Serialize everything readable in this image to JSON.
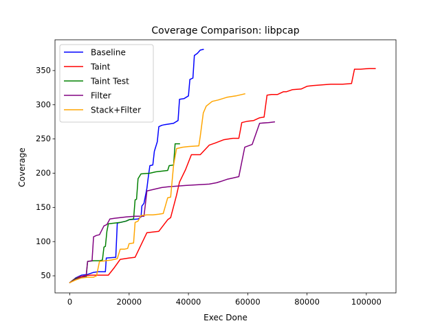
{
  "chart_data": {
    "type": "line",
    "title": "Coverage Comparison: libpcap",
    "xlabel": "Exec Done",
    "ylabel": "Coverage",
    "xlim": [
      -5000,
      110000
    ],
    "ylim": [
      25,
      395
    ],
    "xticks": [
      0,
      20000,
      40000,
      60000,
      80000,
      100000
    ],
    "yticks": [
      50,
      100,
      150,
      200,
      250,
      300,
      350
    ],
    "grid": false,
    "legend_position": "top-left",
    "series": [
      {
        "name": "Baseline",
        "color": "#0000ff",
        "points": [
          [
            0,
            40
          ],
          [
            2000,
            47
          ],
          [
            4000,
            51
          ],
          [
            6000,
            52
          ],
          [
            8000,
            55
          ],
          [
            9500,
            56
          ],
          [
            12000,
            56
          ],
          [
            12300,
            76
          ],
          [
            15500,
            77
          ],
          [
            16000,
            127
          ],
          [
            19000,
            130
          ],
          [
            20000,
            132
          ],
          [
            23000,
            133
          ],
          [
            24000,
            136
          ],
          [
            24300,
            152
          ],
          [
            25000,
            156
          ],
          [
            26000,
            178
          ],
          [
            26500,
            196
          ],
          [
            27000,
            211
          ],
          [
            28000,
            212
          ],
          [
            28500,
            232
          ],
          [
            29500,
            246
          ],
          [
            30000,
            268
          ],
          [
            31000,
            270
          ],
          [
            32000,
            271
          ],
          [
            35000,
            273
          ],
          [
            36500,
            277
          ],
          [
            37000,
            308
          ],
          [
            38500,
            309
          ],
          [
            40000,
            313
          ],
          [
            40500,
            337
          ],
          [
            41500,
            339
          ],
          [
            42000,
            372
          ],
          [
            43000,
            375
          ],
          [
            44000,
            380
          ],
          [
            45000,
            381
          ]
        ]
      },
      {
        "name": "Taint",
        "color": "#ff0000",
        "points": [
          [
            0,
            40
          ],
          [
            1500,
            45
          ],
          [
            3000,
            48
          ],
          [
            5000,
            50
          ],
          [
            7000,
            51
          ],
          [
            10000,
            51
          ],
          [
            13000,
            51
          ],
          [
            15000,
            62
          ],
          [
            17000,
            74
          ],
          [
            20000,
            76
          ],
          [
            22000,
            77
          ],
          [
            26000,
            113
          ],
          [
            28000,
            114
          ],
          [
            30000,
            115
          ],
          [
            33000,
            132
          ],
          [
            34000,
            135
          ],
          [
            36000,
            168
          ],
          [
            37000,
            187
          ],
          [
            39000,
            205
          ],
          [
            41000,
            227
          ],
          [
            44000,
            227
          ],
          [
            47000,
            241
          ],
          [
            49000,
            244
          ],
          [
            52000,
            249
          ],
          [
            55000,
            251
          ],
          [
            57000,
            251
          ],
          [
            58000,
            274
          ],
          [
            60000,
            276
          ],
          [
            62000,
            277
          ],
          [
            64000,
            281
          ],
          [
            65500,
            282
          ],
          [
            66500,
            314
          ],
          [
            68000,
            315
          ],
          [
            70000,
            315
          ],
          [
            72000,
            319
          ],
          [
            73000,
            319
          ],
          [
            75000,
            322
          ],
          [
            78000,
            323
          ],
          [
            80000,
            327
          ],
          [
            82000,
            328
          ],
          [
            85000,
            329
          ],
          [
            88000,
            330
          ],
          [
            92000,
            330
          ],
          [
            95000,
            331
          ],
          [
            96000,
            352
          ],
          [
            98000,
            352
          ],
          [
            101000,
            353
          ],
          [
            103000,
            353
          ]
        ]
      },
      {
        "name": "Taint Test",
        "color": "#008000",
        "points": [
          [
            0,
            40
          ],
          [
            2000,
            46
          ],
          [
            4000,
            48
          ],
          [
            5500,
            48
          ],
          [
            6000,
            71
          ],
          [
            8000,
            72
          ],
          [
            10000,
            72
          ],
          [
            11000,
            73
          ],
          [
            11500,
            92
          ],
          [
            12000,
            93
          ],
          [
            12500,
            115
          ],
          [
            13000,
            126
          ],
          [
            15000,
            127
          ],
          [
            17000,
            128
          ],
          [
            19000,
            130
          ],
          [
            20000,
            132
          ],
          [
            21500,
            133
          ],
          [
            22000,
            161
          ],
          [
            22500,
            162
          ],
          [
            23000,
            192
          ],
          [
            24000,
            199
          ],
          [
            27000,
            200
          ],
          [
            29000,
            202
          ],
          [
            31000,
            203
          ],
          [
            33000,
            204
          ],
          [
            33500,
            211
          ],
          [
            35000,
            212
          ],
          [
            35500,
            243
          ],
          [
            37000,
            243
          ]
        ]
      },
      {
        "name": "Filter",
        "color": "#800080",
        "points": [
          [
            0,
            40
          ],
          [
            2000,
            45
          ],
          [
            4000,
            48
          ],
          [
            5500,
            50
          ],
          [
            6000,
            71
          ],
          [
            7500,
            72
          ],
          [
            8000,
            107
          ],
          [
            9000,
            109
          ],
          [
            10000,
            110
          ],
          [
            11500,
            123
          ],
          [
            12500,
            125
          ],
          [
            13500,
            133
          ],
          [
            15000,
            134
          ],
          [
            17000,
            135
          ],
          [
            19000,
            136
          ],
          [
            22000,
            137
          ],
          [
            25000,
            137
          ],
          [
            25500,
            155
          ],
          [
            26000,
            174
          ],
          [
            27000,
            175
          ],
          [
            29000,
            177
          ],
          [
            31000,
            179
          ],
          [
            33000,
            180
          ],
          [
            36000,
            181
          ],
          [
            39000,
            182
          ],
          [
            43000,
            183
          ],
          [
            47000,
            184
          ],
          [
            49500,
            186
          ],
          [
            51000,
            188
          ],
          [
            53000,
            191
          ],
          [
            55000,
            193
          ],
          [
            57000,
            195
          ],
          [
            59000,
            238
          ],
          [
            61500,
            242
          ],
          [
            64000,
            273
          ],
          [
            67000,
            274
          ],
          [
            69000,
            275
          ]
        ]
      },
      {
        "name": "Stack+Filter",
        "color": "#ffa500",
        "points": [
          [
            0,
            40
          ],
          [
            2000,
            44
          ],
          [
            4000,
            47
          ],
          [
            6000,
            48
          ],
          [
            8000,
            48
          ],
          [
            9000,
            50
          ],
          [
            10000,
            71
          ],
          [
            12000,
            72
          ],
          [
            14000,
            73
          ],
          [
            16000,
            75
          ],
          [
            17000,
            89
          ],
          [
            18500,
            89
          ],
          [
            19500,
            90
          ],
          [
            20000,
            97
          ],
          [
            21500,
            98
          ],
          [
            22000,
            128
          ],
          [
            23000,
            130
          ],
          [
            24000,
            138
          ],
          [
            26000,
            139
          ],
          [
            28000,
            139
          ],
          [
            30000,
            140
          ],
          [
            31500,
            141
          ],
          [
            33000,
            164
          ],
          [
            34000,
            165
          ],
          [
            35000,
            212
          ],
          [
            36000,
            236
          ],
          [
            38000,
            238
          ],
          [
            40000,
            239
          ],
          [
            43500,
            240
          ],
          [
            44000,
            254
          ],
          [
            45000,
            288
          ],
          [
            46000,
            298
          ],
          [
            48000,
            305
          ],
          [
            50000,
            307
          ],
          [
            53000,
            311
          ],
          [
            56000,
            313
          ],
          [
            58000,
            315
          ],
          [
            59000,
            316
          ]
        ]
      }
    ]
  }
}
